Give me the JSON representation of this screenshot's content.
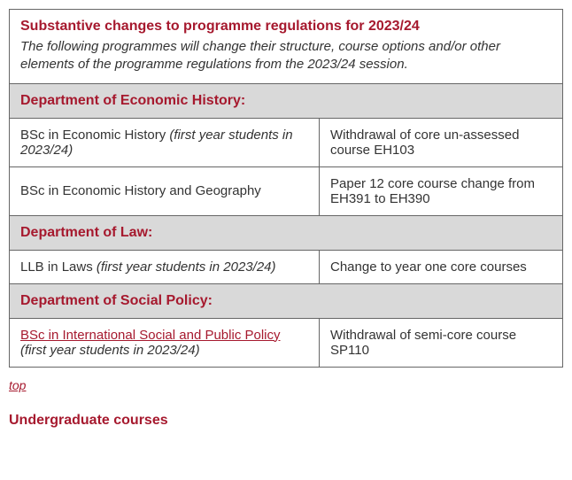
{
  "header": {
    "title": "Substantive changes to programme regulations for 2023/24",
    "intro": "The following programmes will change their structure, course options and/or other elements of the programme regulations from the 2023/24 session."
  },
  "departments": [
    {
      "name": "Department of Economic History:",
      "rows": [
        {
          "programme": "BSc in Economic History",
          "programme_is_link": false,
          "note": "(first year students in 2023/24)",
          "change": "Withdrawal of core un-assessed course EH103"
        },
        {
          "programme": "BSc in Economic History and Geography",
          "programme_is_link": false,
          "note": "",
          "change": "Paper 12 core course change from EH391 to EH390"
        }
      ]
    },
    {
      "name": "Department of Law:",
      "rows": [
        {
          "programme": "LLB in Laws",
          "programme_is_link": false,
          "note": "(first year students in 2023/24)",
          "change": "Change to year one core courses"
        }
      ]
    },
    {
      "name": "Department of Social Policy:",
      "rows": [
        {
          "programme": "BSc in International Social and Public Policy",
          "programme_is_link": true,
          "note": "(first year students in 2023/24)",
          "change": "Withdrawal of semi-core course SP110"
        }
      ]
    }
  ],
  "top_link": "top",
  "section_heading": "Undergraduate courses",
  "colors": {
    "accent": "#a6192e",
    "header_bg": "#d9d9d9",
    "border": "#666666",
    "text": "#333333"
  }
}
